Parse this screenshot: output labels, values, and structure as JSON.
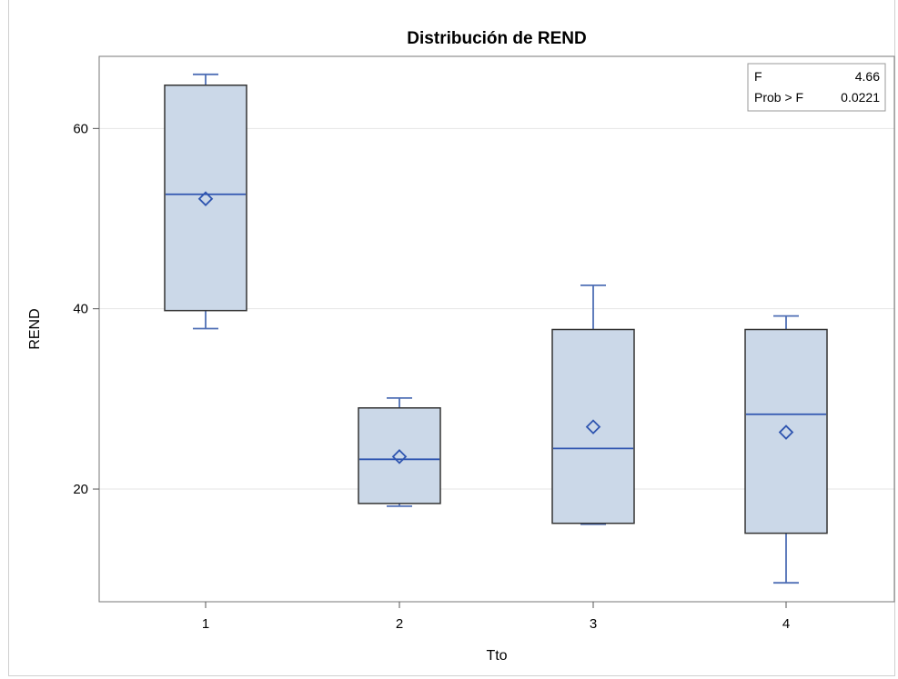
{
  "chart_data": {
    "type": "box",
    "title": "Distribución de REND",
    "xlabel": "Tto",
    "ylabel": "REND",
    "ylim": [
      7.5,
      68
    ],
    "yticks": [
      20,
      40,
      60
    ],
    "grid": true,
    "categories": [
      "1",
      "2",
      "3",
      "4"
    ],
    "boxes": [
      {
        "category": "1",
        "whisker_low": 37.8,
        "q1": 39.8,
        "median": 52.7,
        "q3": 64.8,
        "whisker_high": 66.0,
        "mean": 52.2
      },
      {
        "category": "2",
        "whisker_low": 18.1,
        "q1": 18.4,
        "median": 23.3,
        "q3": 29.0,
        "whisker_high": 30.1,
        "mean": 23.6
      },
      {
        "category": "3",
        "whisker_low": 16.1,
        "q1": 16.2,
        "median": 24.5,
        "q3": 37.7,
        "whisker_high": 42.6,
        "mean": 26.9
      },
      {
        "category": "4",
        "whisker_low": 9.6,
        "q1": 15.1,
        "median": 28.3,
        "q3": 37.7,
        "whisker_high": 39.2,
        "mean": 26.3
      }
    ],
    "inset_table": {
      "placement": "top-right",
      "rows": [
        {
          "label": "F",
          "value": "4.66"
        },
        {
          "label": "Prob > F",
          "value": "0.0221"
        }
      ]
    },
    "colors": {
      "box_fill": "#cbd8e8",
      "box_edge": "#333333",
      "whisker": "#4f6fb5",
      "median": "#2f55b0",
      "mean": "#2f55b0",
      "grid": "#e6e6e6"
    }
  }
}
